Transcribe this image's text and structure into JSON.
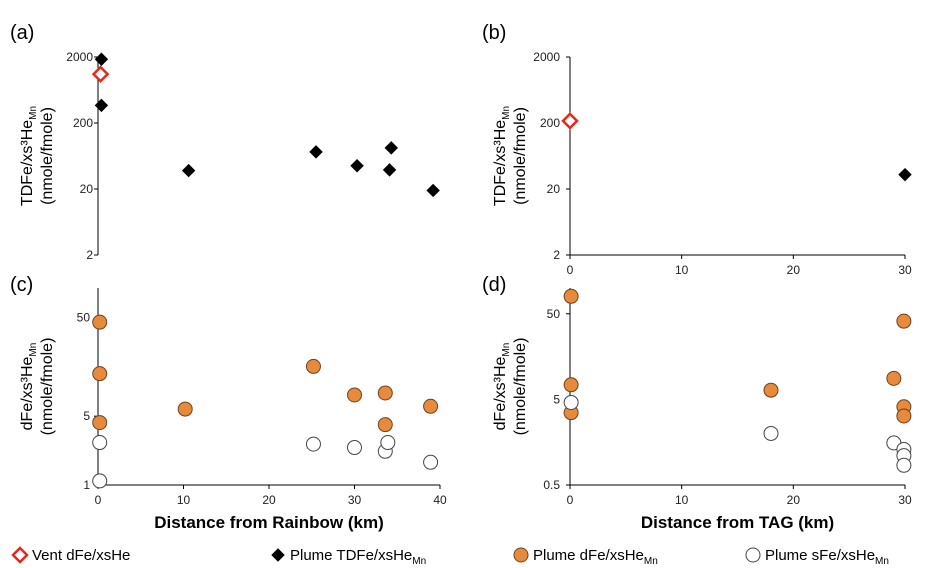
{
  "colors": {
    "vent": "#e8261c",
    "plume_tdfe": "#000000",
    "plume_dfe": "#e88a3c",
    "plume_dfe_edge": "#6b4220",
    "plume_sfe_edge": "#444444",
    "axis": "#000000"
  },
  "chart_data": [
    {
      "id": "a",
      "panel_label": "(a)",
      "type": "scatter",
      "yscale": "log",
      "ylim": [
        2,
        2000
      ],
      "xlim": [
        0,
        40
      ],
      "yticks": [
        "2",
        "20",
        "200",
        "2000"
      ],
      "xticks": [],
      "ylabel_l1": "TDFe/xs³He",
      "ylabel_sub": "Mn",
      "ylabel_l2": "(nmole/fmole)",
      "xlabel": "",
      "series": [
        {
          "name": "Vent dFe/xsHe",
          "marker": "diamond-open-red",
          "points": [
            [
              0.3,
              1100
            ]
          ]
        },
        {
          "name": "Plume TDFe/xsHeMn",
          "marker": "diamond-black",
          "points": [
            [
              0.4,
              1850
            ],
            [
              0.4,
              370
            ],
            [
              10.6,
              38
            ],
            [
              25.5,
              73
            ],
            [
              30.3,
              45
            ],
            [
              34.1,
              39
            ],
            [
              34.3,
              84
            ],
            [
              39.2,
              19
            ]
          ]
        }
      ]
    },
    {
      "id": "b",
      "panel_label": "(b)",
      "type": "scatter",
      "yscale": "log",
      "ylim": [
        2,
        2000
      ],
      "xlim": [
        0,
        30
      ],
      "yticks": [
        "2",
        "20",
        "200",
        "2000"
      ],
      "xticks": [
        "0",
        "10",
        "20",
        "30"
      ],
      "ylabel_l1": "TDFe/xs³He",
      "ylabel_sub": "Mn",
      "ylabel_l2": "(nmole/fmole)",
      "xlabel": "",
      "series": [
        {
          "name": "Vent dFe/xsHe",
          "marker": "diamond-open-red",
          "points": [
            [
              0,
              215
            ]
          ]
        },
        {
          "name": "Plume TDFe/xsHeMn",
          "marker": "diamond-black",
          "points": [
            [
              30,
              33
            ]
          ]
        }
      ]
    },
    {
      "id": "c",
      "panel_label": "(c)",
      "type": "scatter",
      "yscale": "log",
      "ylim": [
        1,
        100
      ],
      "xlim": [
        0,
        40
      ],
      "yticks": [
        "1",
        "5",
        "50"
      ],
      "xticks": [
        "0",
        "10",
        "20",
        "30",
        "40"
      ],
      "ylabel_l1": "dFe/xs³He",
      "ylabel_sub": "Mn",
      "ylabel_l2": "(nmole/fmole)",
      "xlabel": "Distance from Rainbow (km)",
      "series": [
        {
          "name": "Plume dFe/xsHeMn",
          "marker": "circle-orange",
          "points": [
            [
              0.2,
              45
            ],
            [
              0.2,
              13.5
            ],
            [
              0.2,
              4.3
            ],
            [
              10.2,
              5.9
            ],
            [
              25.2,
              16
            ],
            [
              30,
              8.2
            ],
            [
              33.6,
              8.6
            ],
            [
              33.6,
              4.1
            ],
            [
              38.9,
              6.3
            ]
          ]
        },
        {
          "name": "Plume sFe/xsHeMn",
          "marker": "circle-open",
          "points": [
            [
              0.2,
              2.7
            ],
            [
              0.2,
              1.1
            ],
            [
              25.2,
              2.6
            ],
            [
              30,
              2.4
            ],
            [
              33.6,
              2.2
            ],
            [
              33.9,
              2.7
            ],
            [
              38.9,
              1.7
            ]
          ]
        }
      ]
    },
    {
      "id": "d",
      "panel_label": "(d)",
      "type": "scatter",
      "yscale": "log",
      "ylim": [
        0.5,
        100
      ],
      "xlim": [
        0,
        30
      ],
      "yticks": [
        "0.5",
        "5",
        "50"
      ],
      "xticks": [
        "0",
        "10",
        "20",
        "30"
      ],
      "ylabel_l1": "dFe/xs³He",
      "ylabel_sub": "Mn",
      "ylabel_l2": "(nmole/fmole)",
      "xlabel": "Distance from TAG (km)",
      "series": [
        {
          "name": "Plume dFe/xsHeMn",
          "marker": "circle-orange",
          "points": [
            [
              0.1,
              80
            ],
            [
              0.1,
              7.4
            ],
            [
              0.1,
              3.5
            ],
            [
              18,
              6.4
            ],
            [
              29,
              8.8
            ],
            [
              29.9,
              41
            ],
            [
              29.9,
              4.1
            ],
            [
              29.9,
              3.2
            ]
          ]
        },
        {
          "name": "Plume sFe/xsHeMn",
          "marker": "circle-open",
          "points": [
            [
              0.1,
              4.6
            ],
            [
              18,
              2.0
            ],
            [
              29,
              1.55
            ],
            [
              29.9,
              1.3
            ],
            [
              29.9,
              1.1
            ],
            [
              29.9,
              0.85
            ]
          ]
        }
      ]
    }
  ],
  "legend": [
    {
      "marker": "diamond-open-red",
      "label": "Vent dFe/xsHe",
      "sub": ""
    },
    {
      "marker": "diamond-black",
      "label": "Plume TDFe/xsHe",
      "sub": "Mn"
    },
    {
      "marker": "circle-orange",
      "label": "Plume dFe/xsHe",
      "sub": "Mn"
    },
    {
      "marker": "circle-open",
      "label": "Plume sFe/xsHe",
      "sub": "Mn"
    }
  ]
}
